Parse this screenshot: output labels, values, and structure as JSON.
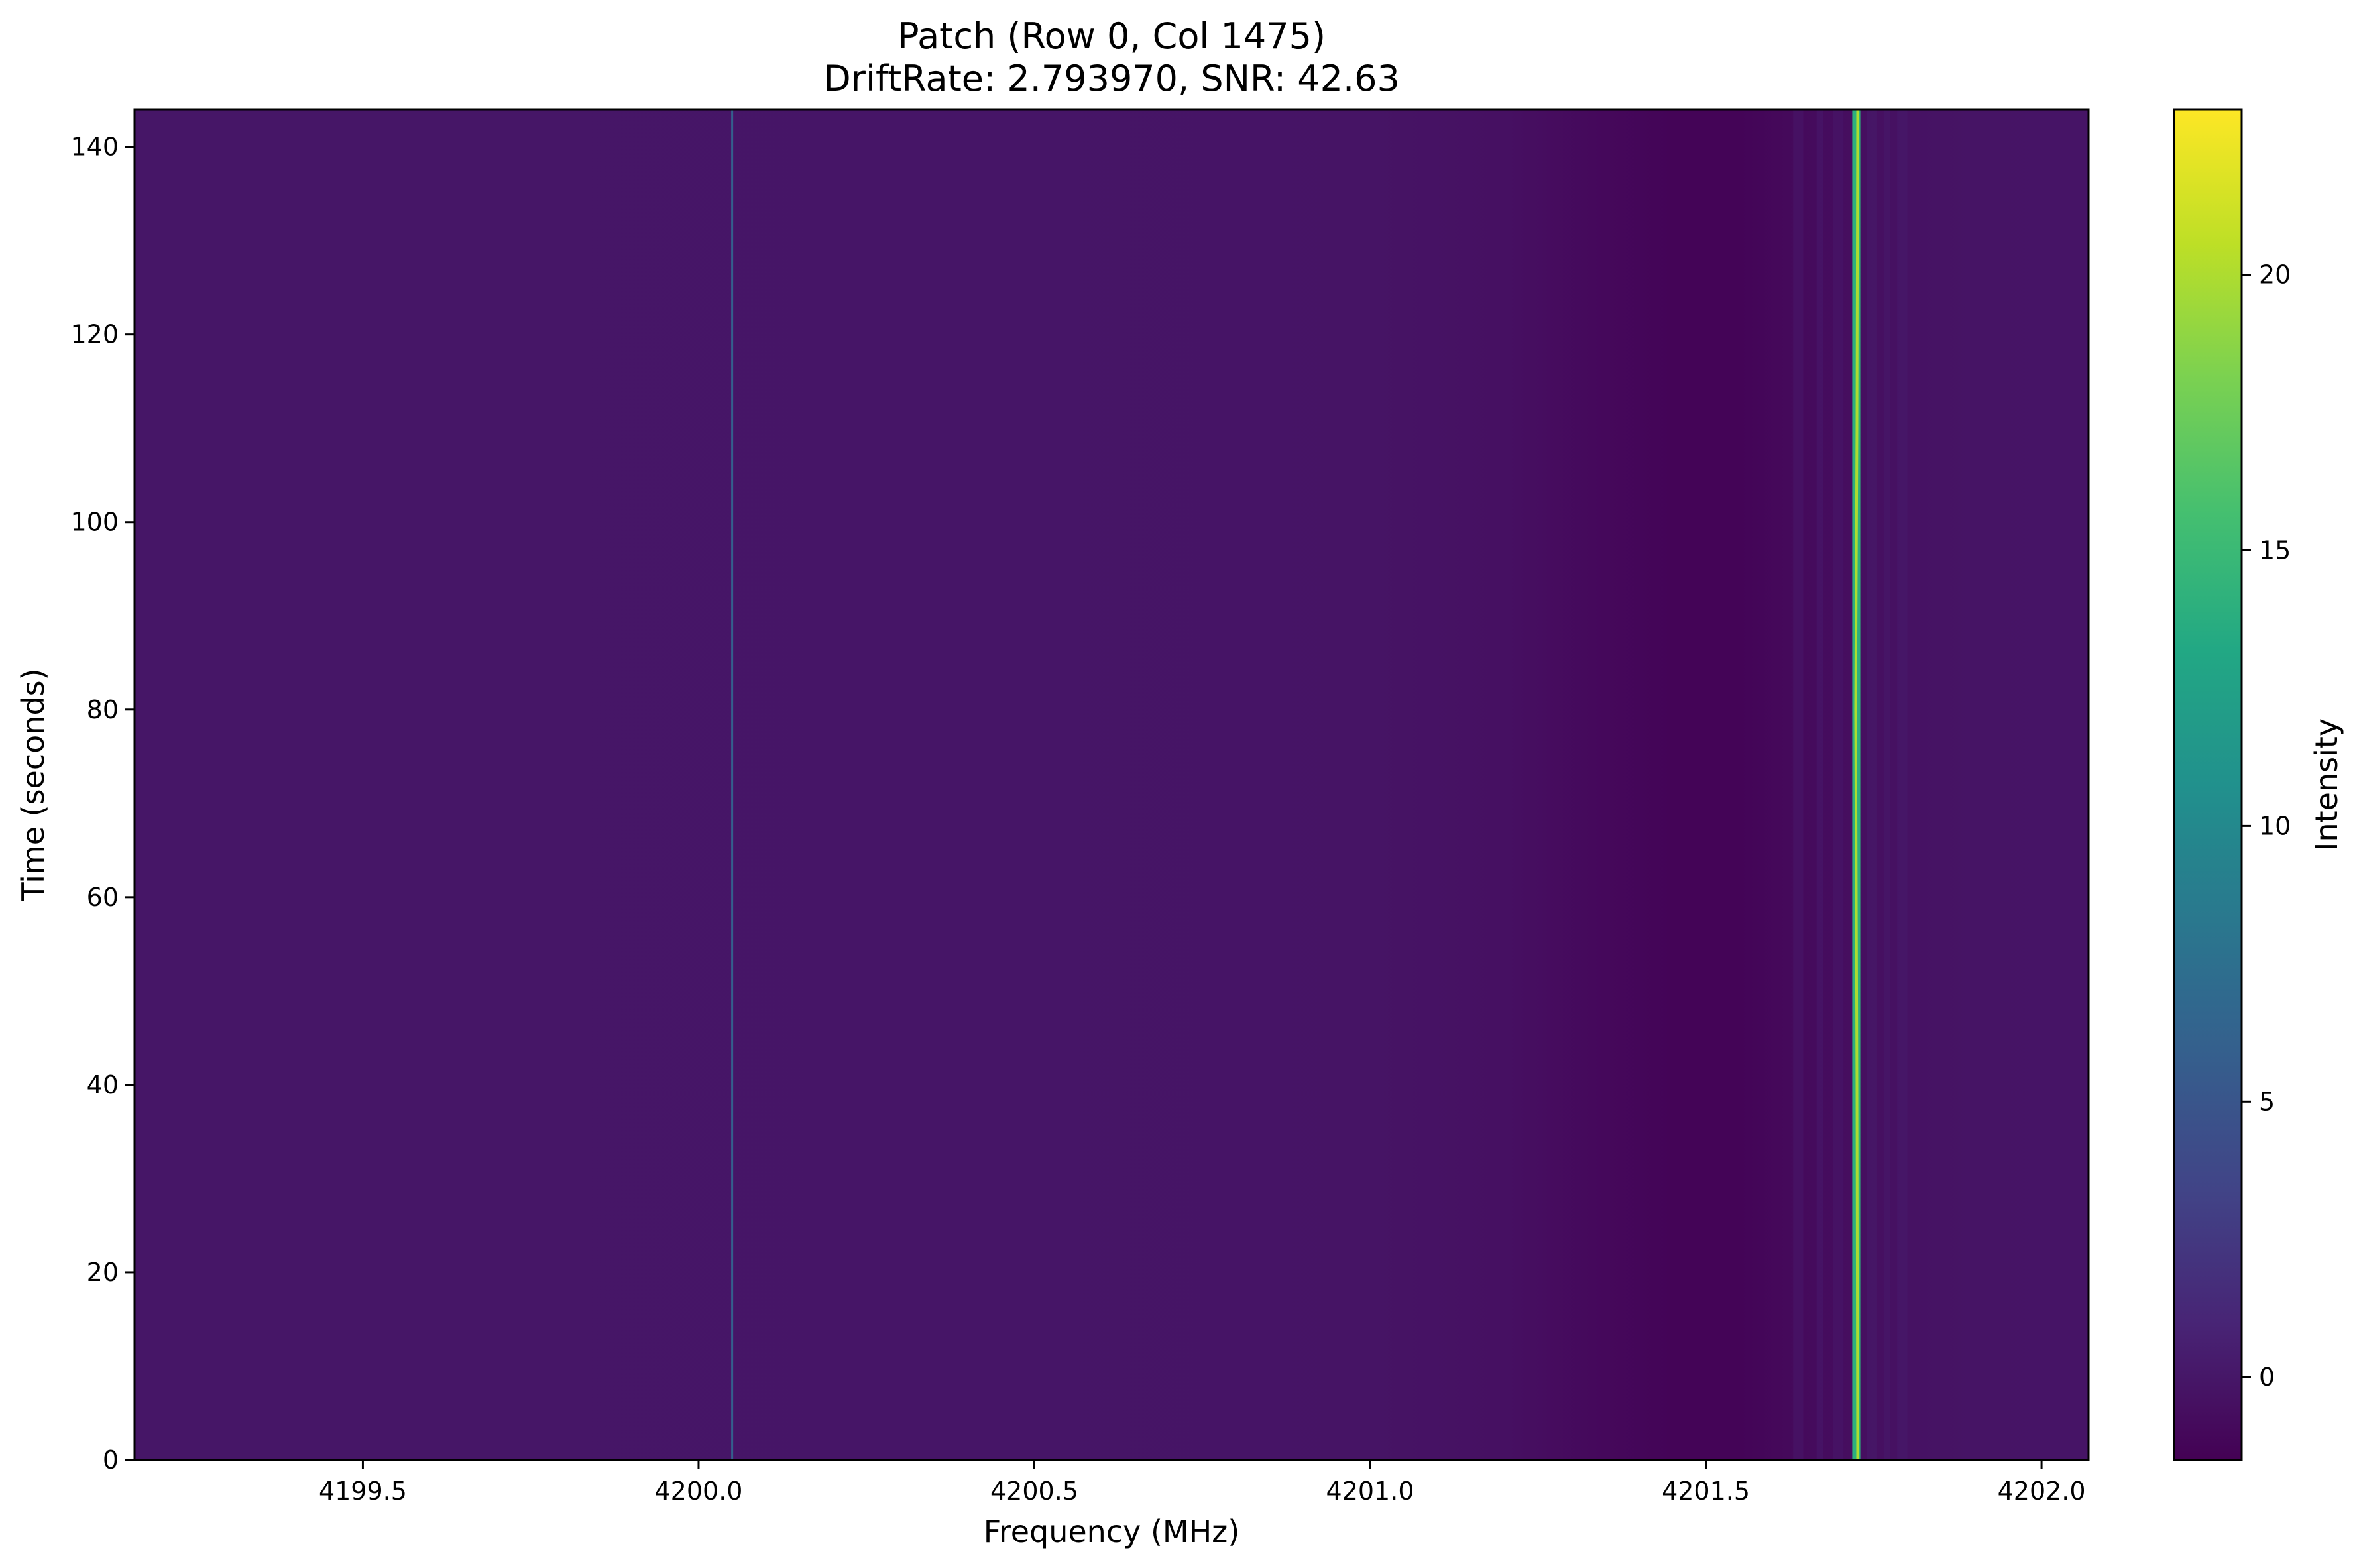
{
  "chart_data": {
    "type": "heatmap",
    "title": "Patch (Row 0, Col 1475)",
    "subtitle": "DriftRate: 2.793970, SNR: 42.63",
    "xlabel": "Frequency (MHz)",
    "ylabel": "Time (seconds)",
    "xlim": [
      4199.16,
      4202.07
    ],
    "ylim": [
      0,
      144
    ],
    "x_ticks": [
      4199.5,
      4200.0,
      4200.5,
      4201.0,
      4201.5,
      4202.0
    ],
    "x_tick_labels": [
      "4199.5",
      "4200.0",
      "4200.5",
      "4201.0",
      "4201.5",
      "4202.0"
    ],
    "y_ticks": [
      0,
      20,
      40,
      60,
      80,
      100,
      120,
      140
    ],
    "y_tick_labels": [
      "0",
      "20",
      "40",
      "60",
      "80",
      "100",
      "120",
      "140"
    ],
    "colormap": "viridis",
    "colorbar": {
      "label": "Intensity",
      "range": [
        -1.5,
        23
      ],
      "ticks": [
        0,
        5,
        10,
        15,
        20
      ],
      "tick_labels": [
        "0",
        "5",
        "10",
        "15",
        "20"
      ]
    },
    "background_intensity": [
      {
        "freq": 4199.16,
        "value": -0.05
      },
      {
        "freq": 4200.5,
        "value": -0.1
      },
      {
        "freq": 4201.0,
        "value": -0.2
      },
      {
        "freq": 4201.2,
        "value": -0.45
      },
      {
        "freq": 4201.35,
        "value": -1.0
      },
      {
        "freq": 4201.45,
        "value": -1.3
      },
      {
        "freq": 4201.55,
        "value": -1.3
      },
      {
        "freq": 4201.62,
        "value": -0.95
      },
      {
        "freq": 4201.8,
        "value": -0.35
      },
      {
        "freq": 4201.9,
        "value": -0.2
      },
      {
        "freq": 4202.07,
        "value": -0.15
      }
    ],
    "faint_bands": [
      {
        "freq_start": 4201.63,
        "freq_end": 4201.645,
        "value": 0.1
      },
      {
        "freq_start": 4201.665,
        "freq_end": 4201.675,
        "value": 0.2
      },
      {
        "freq_start": 4201.69,
        "freq_end": 4201.705,
        "value": 0.05
      },
      {
        "freq_start": 4201.74,
        "freq_end": 4201.755,
        "value": 0.3
      },
      {
        "freq_start": 4201.765,
        "freq_end": 4201.775,
        "value": 0.15
      },
      {
        "freq_start": 4201.785,
        "freq_end": 4201.8,
        "value": 0.25
      }
    ],
    "lines": [
      {
        "freq": 4200.05,
        "value": 6
      },
      {
        "freq": 4201.724,
        "value": 14,
        "freq_width": 0.012
      }
    ],
    "signal": {
      "points": [
        {
          "time": 0,
          "freq": 4201.726
        },
        {
          "time": 40,
          "freq": 4201.725
        },
        {
          "time": 80,
          "freq": 4201.723
        },
        {
          "time": 110,
          "freq": 4201.725
        },
        {
          "time": 144,
          "freq": 4201.726
        }
      ],
      "value": 20
    }
  }
}
